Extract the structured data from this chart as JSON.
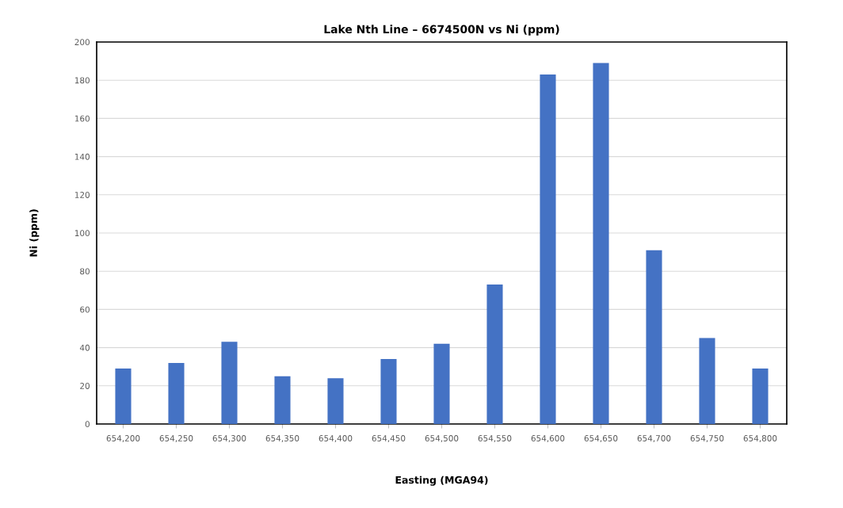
{
  "chart_data": {
    "type": "bar",
    "title": "Lake Nth Line – 6674500N vs Ni (ppm)",
    "xlabel": "Easting (MGA94)",
    "ylabel": "Ni (ppm)",
    "categories": [
      "654,200",
      "654,250",
      "654,300",
      "654,350",
      "654,400",
      "654,450",
      "654,500",
      "654,550",
      "654,600",
      "654,650",
      "654,700",
      "654,750",
      "654,800"
    ],
    "values": [
      29,
      32,
      43,
      25,
      24,
      34,
      42,
      73,
      183,
      189,
      91,
      45,
      29
    ],
    "color": "#4472c4",
    "ylim": [
      0,
      200
    ],
    "yticks": [
      0,
      20,
      40,
      60,
      80,
      100,
      120,
      140,
      160,
      180,
      200
    ],
    "grid": "y",
    "legend": false
  }
}
